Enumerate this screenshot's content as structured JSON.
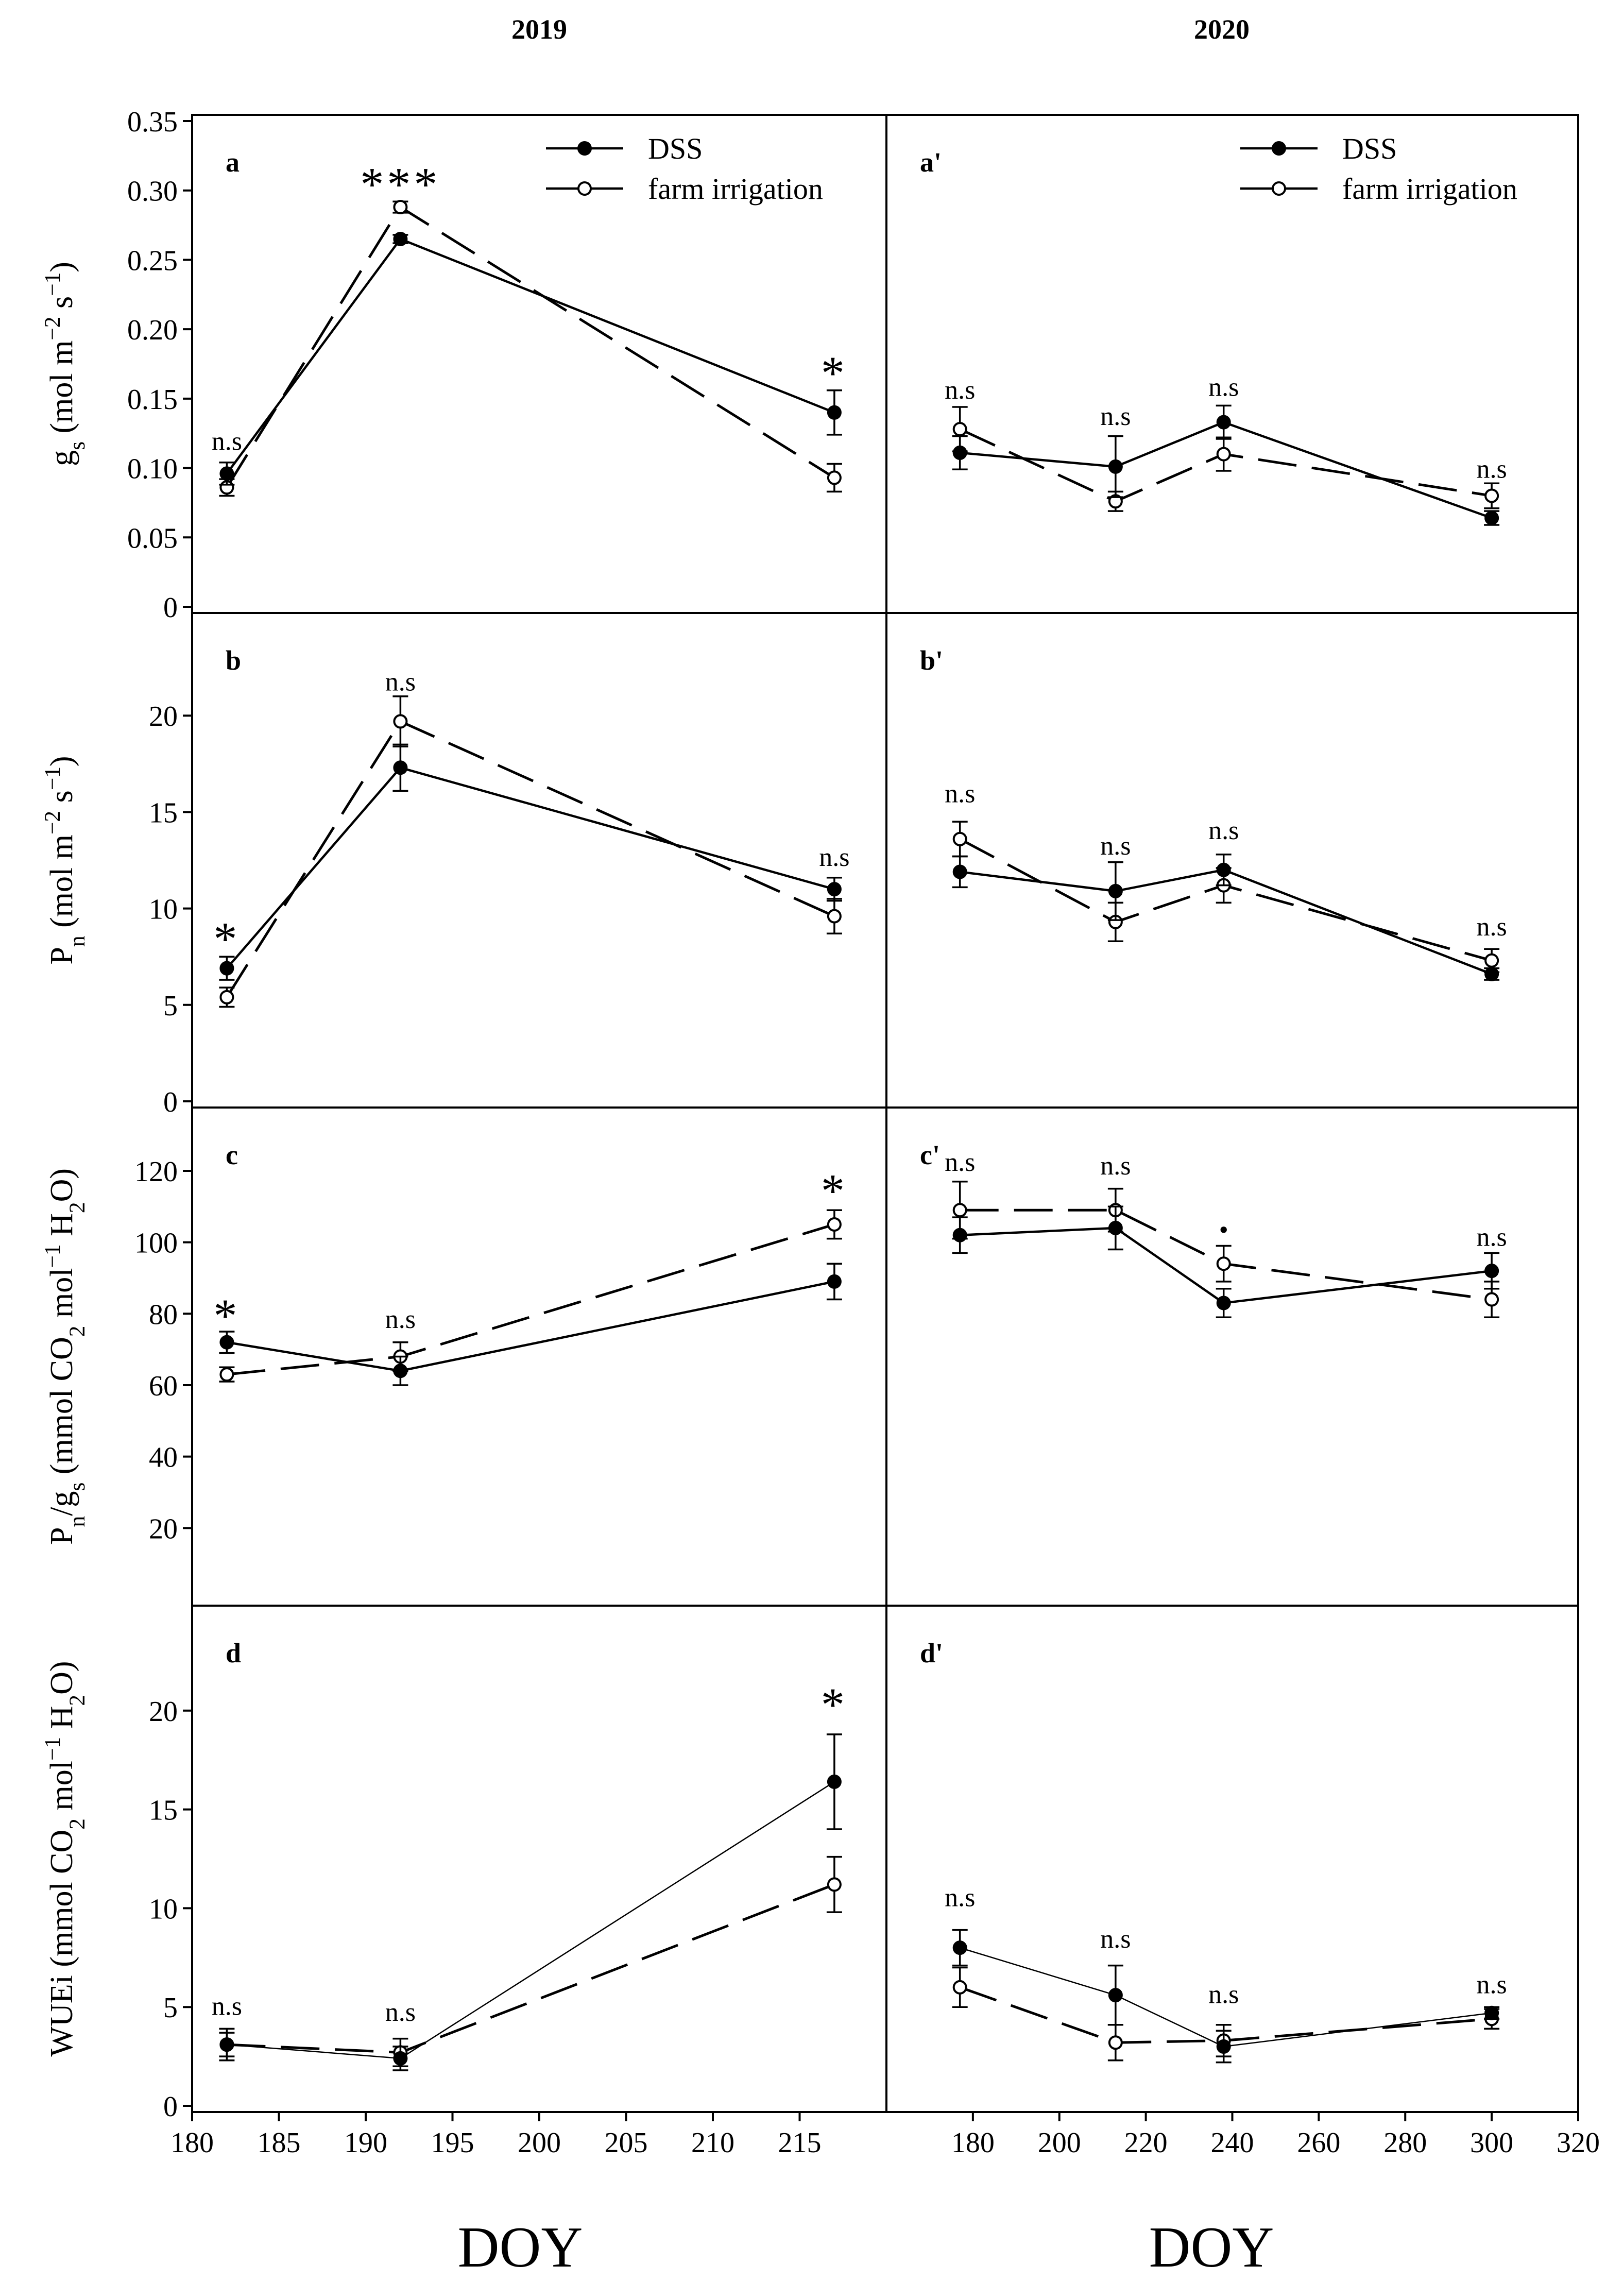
{
  "figure": {
    "column_titles": [
      "2019",
      "2020"
    ],
    "x_label_left": "DOY",
    "x_label_right": "DOY",
    "legend": {
      "dss": "DSS",
      "farm": "farm irrigation"
    }
  },
  "chart_data": [
    {
      "id": "a",
      "panel_label": "a",
      "type": "line",
      "ylabel_parts": [
        "g",
        "s",
        " (mol m",
        "−2",
        " s",
        "−1",
        ")"
      ],
      "x": [
        182,
        192,
        217
      ],
      "xlim": [
        180,
        220
      ],
      "ylim": [
        0,
        0.35
      ],
      "yticks": [
        0,
        0.05,
        0.1,
        0.15,
        0.2,
        0.25,
        0.3,
        0.35
      ],
      "ytick_labels": [
        "0",
        "0.05",
        "0.10",
        "0.15",
        "0.20",
        "0.25",
        "0.30",
        "0.35"
      ],
      "series": [
        {
          "name": "DSS",
          "values": [
            0.096,
            0.265,
            0.14
          ],
          "errors": [
            0.008,
            0.003,
            0.016
          ]
        },
        {
          "name": "farm irrigation",
          "values": [
            0.086,
            0.288,
            0.093
          ],
          "errors": [
            0.006,
            0.004,
            0.01
          ]
        }
      ],
      "annotations": [
        "n.s",
        "***",
        "*"
      ],
      "annotation_y": [
        0.113,
        0.293,
        0.157
      ],
      "annotation_star": [
        false,
        true,
        true
      ],
      "show_legend": true
    },
    {
      "id": "a2",
      "panel_label": "a'",
      "type": "line",
      "x": [
        177,
        213,
        238,
        300
      ],
      "xlim": [
        160,
        320
      ],
      "ylim": [
        0,
        0.35
      ],
      "series": [
        {
          "name": "DSS",
          "values": [
            0.111,
            0.101,
            0.133,
            0.064
          ],
          "errors": [
            0.012,
            0.022,
            0.012,
            0.005
          ]
        },
        {
          "name": "farm irrigation",
          "values": [
            0.128,
            0.076,
            0.11,
            0.08
          ],
          "errors": [
            0.016,
            0.007,
            0.012,
            0.009
          ]
        }
      ],
      "annotations": [
        "n.s",
        "n.s",
        "n.s",
        "n.s"
      ],
      "annotation_y": [
        0.15,
        0.131,
        0.152,
        0.093
      ],
      "annotation_star": [
        false,
        false,
        false,
        false
      ],
      "show_legend": true
    },
    {
      "id": "b",
      "panel_label": "b",
      "type": "line",
      "ylabel_parts": [
        "P",
        "n",
        " (mol m",
        "−2",
        " s",
        "−1",
        ")"
      ],
      "x": [
        182,
        192,
        217
      ],
      "xlim": [
        180,
        220
      ],
      "ylim": [
        0,
        25
      ],
      "yticks": [
        0,
        5,
        10,
        15,
        20
      ],
      "ytick_labels": [
        "0",
        "5",
        "10",
        "15",
        "20"
      ],
      "series": [
        {
          "name": "DSS",
          "values": [
            6.9,
            17.3,
            11.0
          ],
          "errors": [
            0.6,
            1.2,
            0.6
          ]
        },
        {
          "name": "farm irrigation",
          "values": [
            5.4,
            19.7,
            9.6
          ],
          "errors": [
            0.5,
            1.3,
            0.9
          ]
        }
      ],
      "annotations": [
        "*",
        "n.s",
        "n.s"
      ],
      "annotation_y": [
        7.6,
        21.3,
        12.2
      ],
      "annotation_star": [
        true,
        false,
        false
      ],
      "show_legend": false
    },
    {
      "id": "b2",
      "panel_label": "b'",
      "type": "line",
      "x": [
        177,
        213,
        238,
        300
      ],
      "xlim": [
        160,
        320
      ],
      "ylim": [
        0,
        25
      ],
      "series": [
        {
          "name": "DSS",
          "values": [
            11.9,
            10.9,
            12.0,
            6.6
          ],
          "errors": [
            0.8,
            1.5,
            0.8,
            0.3
          ]
        },
        {
          "name": "farm irrigation",
          "values": [
            13.6,
            9.3,
            11.2,
            7.3
          ],
          "errors": [
            0.9,
            1.0,
            0.9,
            0.6
          ]
        }
      ],
      "annotations": [
        "n.s",
        "n.s",
        "n.s",
        "n.s"
      ],
      "annotation_y": [
        15.5,
        12.8,
        13.6,
        8.6
      ],
      "annotation_star": [
        false,
        false,
        false,
        false
      ],
      "show_legend": false
    },
    {
      "id": "c",
      "panel_label": "c",
      "type": "line",
      "ylabel_parts": [
        "P",
        "n",
        "/g",
        "s",
        " (mmol CO",
        "2",
        " mol",
        "−1",
        " H",
        "2",
        "O)"
      ],
      "x": [
        182,
        192,
        217
      ],
      "xlim": [
        180,
        220
      ],
      "ylim": [
        0,
        136
      ],
      "yticks": [
        20,
        40,
        60,
        80,
        100,
        120
      ],
      "ytick_labels": [
        "20",
        "40",
        "60",
        "80",
        "100",
        "120"
      ],
      "series": [
        {
          "name": "DSS",
          "values": [
            72,
            64,
            89
          ],
          "errors": [
            3,
            4,
            5
          ]
        },
        {
          "name": "farm irrigation",
          "values": [
            63,
            68,
            105
          ],
          "errors": [
            2,
            4,
            4
          ]
        }
      ],
      "annotations": [
        "*",
        "n.s",
        "*"
      ],
      "annotation_y": [
        75,
        76,
        110
      ],
      "annotation_star": [
        true,
        false,
        true
      ],
      "show_legend": false
    },
    {
      "id": "c2",
      "panel_label": "c'",
      "type": "line",
      "x": [
        177,
        213,
        238,
        300
      ],
      "xlim": [
        160,
        320
      ],
      "ylim": [
        0,
        136
      ],
      "series": [
        {
          "name": "DSS",
          "values": [
            102,
            104,
            83,
            92
          ],
          "errors": [
            5,
            6,
            4,
            5
          ]
        },
        {
          "name": "farm irrigation",
          "values": [
            109,
            109,
            94,
            84
          ],
          "errors": [
            8,
            6,
            5,
            5
          ]
        }
      ],
      "annotations": [
        "n.s",
        "n.s",
        "•",
        "n.s"
      ],
      "annotation_y": [
        120,
        119,
        101,
        99
      ],
      "annotation_star": [
        false,
        false,
        false,
        false
      ],
      "show_legend": false
    },
    {
      "id": "d",
      "panel_label": "d",
      "type": "line",
      "ylabel_parts": [
        "WUEi (mmol CO",
        "2",
        " mol",
        "−1",
        " H",
        "2",
        "O)"
      ],
      "x": [
        182,
        192,
        217
      ],
      "xlim": [
        180,
        220
      ],
      "ylim": [
        0,
        25
      ],
      "yticks": [
        0,
        5,
        10,
        15,
        20
      ],
      "ytick_labels": [
        "0",
        "5",
        "10",
        "15",
        "20"
      ],
      "xticks": [
        180,
        185,
        190,
        195,
        200,
        205,
        210,
        215
      ],
      "xtick_labels": [
        "180",
        "185",
        "190",
        "195",
        "200",
        "205",
        "210",
        "215"
      ],
      "series": [
        {
          "name": "DSS",
          "values": [
            3.1,
            2.4,
            16.4
          ],
          "errors": [
            0.8,
            0.6,
            2.4
          ]
        },
        {
          "name": "farm irrigation",
          "values": [
            3.1,
            2.7,
            11.2
          ],
          "errors": [
            0.6,
            0.7,
            1.4
          ]
        }
      ],
      "annotations": [
        "n.s",
        "n.s",
        "*"
      ],
      "annotation_y": [
        4.6,
        4.3,
        19.5
      ],
      "annotation_star": [
        false,
        false,
        true
      ],
      "show_legend": false
    },
    {
      "id": "d2",
      "panel_label": "d'",
      "type": "line",
      "x": [
        177,
        213,
        238,
        300
      ],
      "xlim": [
        160,
        320
      ],
      "ylim": [
        0,
        25
      ],
      "xticks": [
        180,
        200,
        220,
        240,
        260,
        280,
        300,
        320
      ],
      "xtick_labels": [
        "180",
        "200",
        "220",
        "240",
        "260",
        "280",
        "300",
        "320"
      ],
      "series": [
        {
          "name": "DSS",
          "values": [
            8.0,
            5.6,
            3.0,
            4.7
          ],
          "errors": [
            0.9,
            1.5,
            0.8,
            0.3
          ]
        },
        {
          "name": "farm irrigation",
          "values": [
            6.0,
            3.2,
            3.3,
            4.4
          ],
          "errors": [
            1.0,
            0.9,
            0.8,
            0.5
          ]
        }
      ],
      "annotations": [
        "n.s",
        "n.s",
        "n.s",
        "n.s"
      ],
      "annotation_y": [
        10.1,
        8.0,
        5.2,
        5.7
      ],
      "annotation_star": [
        false,
        false,
        false,
        false
      ],
      "show_legend": false
    }
  ]
}
